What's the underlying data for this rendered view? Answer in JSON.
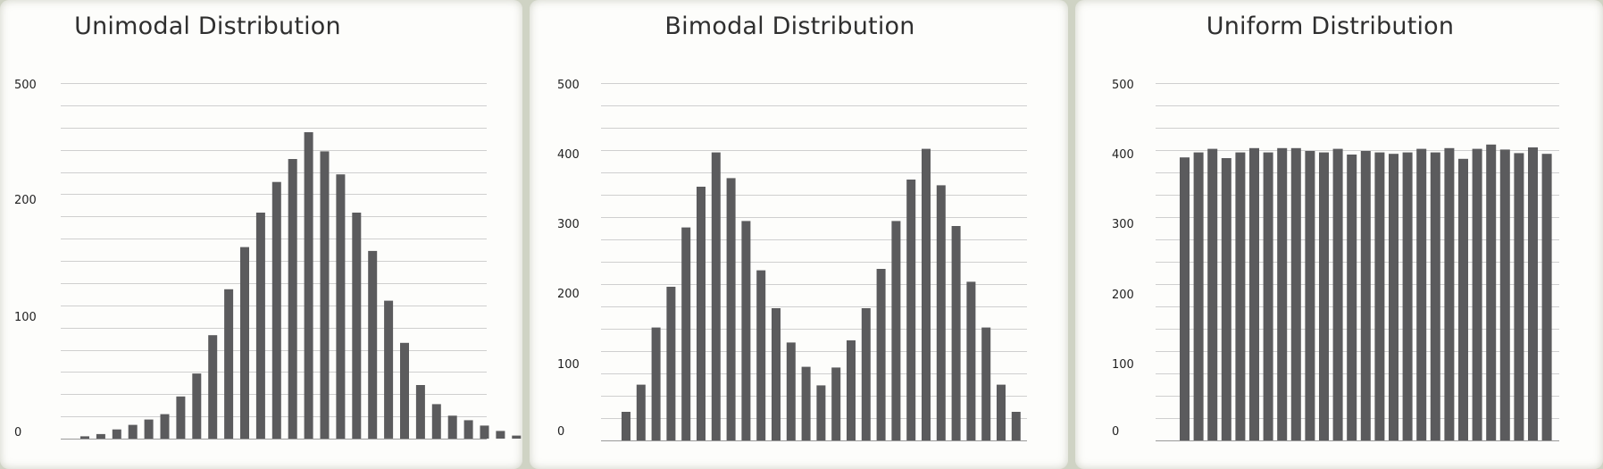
{
  "chart_data": [
    {
      "type": "bar",
      "title": "Unimodal Distribution",
      "ytick_labels": [
        "0",
        "100",
        "200",
        "500"
      ],
      "values": [
        3,
        6,
        12,
        18,
        25,
        32,
        55,
        85,
        135,
        195,
        250,
        295,
        335,
        365,
        400,
        375,
        345,
        295,
        245,
        180,
        125,
        70,
        45,
        30,
        24,
        17,
        10,
        4
      ],
      "grid": true
    },
    {
      "type": "bar",
      "title": "Bimodal Distribution",
      "ytick_labels": [
        "0",
        "100",
        "200",
        "300",
        "400",
        "500"
      ],
      "ylim": [
        0,
        500
      ],
      "values": [
        40,
        78,
        158,
        215,
        298,
        355,
        403,
        367,
        307,
        238,
        185,
        137,
        103,
        77,
        102,
        140,
        185,
        240,
        307,
        365,
        408,
        357,
        300,
        222,
        158,
        78,
        40
      ],
      "grid": true
    },
    {
      "type": "bar",
      "title": "Uniform Distribution",
      "ytick_labels": [
        "0",
        "100",
        "200",
        "300",
        "400",
        "500"
      ],
      "ylim": [
        0,
        500
      ],
      "values": [
        396,
        403,
        408,
        395,
        403,
        409,
        403,
        409,
        409,
        405,
        403,
        408,
        400,
        405,
        403,
        401,
        403,
        408,
        403,
        409,
        394,
        408,
        414,
        407,
        402,
        410,
        401
      ],
      "grid": true
    }
  ]
}
